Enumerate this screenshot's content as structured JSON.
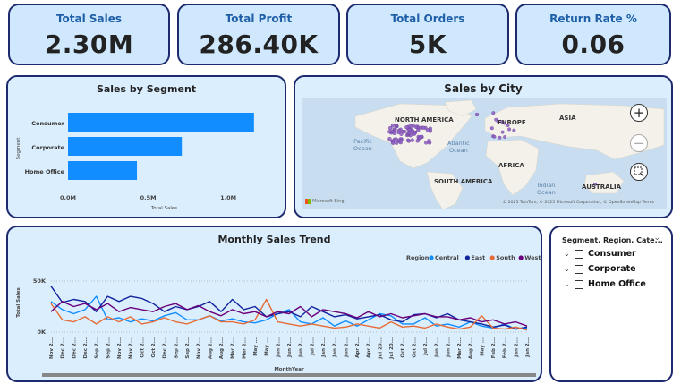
{
  "kpis": [
    {
      "label": "Total Sales",
      "value": "2.30M"
    },
    {
      "label": "Total Profit",
      "value": "286.40K"
    },
    {
      "label": "Total Orders",
      "value": "5K"
    },
    {
      "label": "Return Rate %",
      "value": "0.06"
    }
  ],
  "segment_chart": {
    "title": "Sales by Segment",
    "xlabel": "Total Sales",
    "ylabel": "Segment",
    "ticks": [
      "0.0M",
      "0.5M",
      "1.0M"
    ]
  },
  "map": {
    "title": "Sales by City",
    "labels": {
      "north_america": "NORTH AMERICA",
      "europe": "EUROPE",
      "asia": "ASIA",
      "africa": "AFRICA",
      "south_america": "SOUTH AMERICA",
      "australia": "AUSTRALIA",
      "pacific": "Pacific\nOcean",
      "atlantic": "Atlantic\nOcean",
      "indian": "Indian\nOcean"
    },
    "brand": "Microsoft Bing",
    "attribution": "© 2025 TomTom, © 2025 Microsoft Corporation, © OpenStreetMap  Terms",
    "zoom_in": "+",
    "zoom_out": "−"
  },
  "trend_chart": {
    "title": "Monthly Sales Trend",
    "xlabel": "MonthYear",
    "ylabel": "Total Sales",
    "legend_title": "Region",
    "y_ticks": [
      "50K",
      "0K"
    ]
  },
  "slicer": {
    "title": "Segment, Region, Cate...",
    "items": [
      "Consumer",
      "Corporate",
      "Home Office"
    ]
  },
  "chart_data": [
    {
      "type": "bar",
      "title": "Sales by Segment",
      "categories": [
        "Consumer",
        "Corporate",
        "Home Office"
      ],
      "values": [
        1.16,
        0.71,
        0.43
      ],
      "xlabel": "Total Sales",
      "ylabel": "Segment",
      "xlim": [
        0,
        1.2
      ],
      "unit": "M",
      "color": "#118dff"
    },
    {
      "type": "line",
      "title": "Monthly Sales Trend",
      "xlabel": "MonthYear",
      "ylabel": "Total Sales",
      "ylim": [
        0,
        60
      ],
      "unit": "K",
      "x": [
        "Nov 2...",
        "Dec 2...",
        "Dec 2...",
        "Dec 2...",
        "Sep 2...",
        "Sep 2...",
        "Nov 2...",
        "Nov 2...",
        "Oct 2...",
        "Oct 2...",
        "Dec 2...",
        "Sep 2...",
        "Sep 2...",
        "Nov 2...",
        "Aug 2...",
        "Aug 2...",
        "Mar 2...",
        "Mar 2...",
        "May ...",
        "May ...",
        "Jun 2...",
        "Jun 2...",
        "Jun 2...",
        "Jul 2...",
        "Jan 2...",
        "Jan 2...",
        "Jun 2...",
        "Apr 2...",
        "Apr 2...",
        "Jul 20...",
        "Jul 20...",
        "Oct 2...",
        "Oct 2...",
        "Jul 2...",
        "Jun 2...",
        "Jun 2...",
        "Mar 2...",
        "Aug 2...",
        "May ...",
        "Feb 2...",
        "Feb 2...",
        "Jan 2...",
        "Jan 2..."
      ],
      "series": [
        {
          "name": "Central",
          "color": "#118dff",
          "values": [
            30,
            22,
            18,
            22,
            35,
            12,
            14,
            10,
            13,
            11,
            16,
            19,
            12,
            12,
            16,
            11,
            13,
            10,
            9,
            12,
            18,
            22,
            10,
            8,
            14,
            6,
            11,
            6,
            12,
            18,
            16,
            8,
            8,
            14,
            6,
            8,
            5,
            10,
            6,
            4,
            8,
            3,
            4
          ]
        },
        {
          "name": "East",
          "color": "#12239e",
          "values": [
            45,
            29,
            32,
            30,
            20,
            35,
            30,
            35,
            33,
            28,
            20,
            25,
            22,
            25,
            30,
            20,
            32,
            22,
            25,
            15,
            18,
            20,
            15,
            25,
            20,
            15,
            17,
            13,
            15,
            17,
            12,
            10,
            17,
            18,
            14,
            18,
            12,
            10,
            8,
            5,
            7,
            3,
            5
          ]
        },
        {
          "name": "South",
          "color": "#e66c37",
          "values": [
            28,
            12,
            10,
            15,
            8,
            15,
            10,
            15,
            8,
            10,
            14,
            10,
            8,
            12,
            16,
            10,
            10,
            8,
            12,
            32,
            10,
            8,
            6,
            8,
            6,
            4,
            5,
            8,
            6,
            4,
            10,
            5,
            6,
            4,
            8,
            5,
            3,
            5,
            16,
            4,
            3,
            5,
            2
          ]
        },
        {
          "name": "West",
          "color": "#6b007b",
          "values": [
            20,
            30,
            25,
            28,
            22,
            28,
            20,
            24,
            22,
            20,
            25,
            28,
            22,
            26,
            20,
            16,
            22,
            18,
            20,
            15,
            20,
            18,
            25,
            15,
            22,
            20,
            18,
            14,
            20,
            15,
            18,
            14,
            16,
            18,
            15,
            15,
            12,
            14,
            10,
            12,
            8,
            10,
            6
          ]
        }
      ]
    }
  ]
}
